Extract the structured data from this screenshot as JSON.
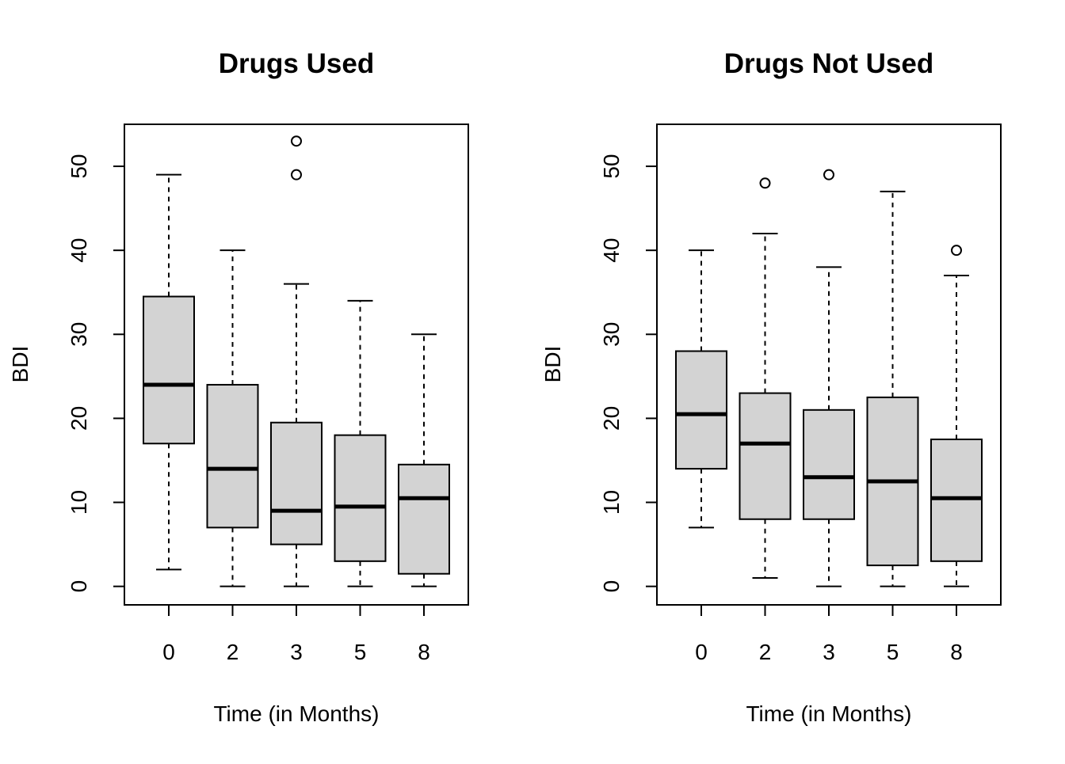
{
  "chart_data": [
    {
      "type": "boxplot",
      "title": "Drugs Used",
      "xlabel": "Time (in Months)",
      "ylabel": "BDI",
      "categories": [
        "0",
        "2",
        "3",
        "5",
        "8"
      ],
      "y_ticks": [
        0,
        10,
        20,
        30,
        40,
        50
      ],
      "ylim": [
        -2.2,
        55
      ],
      "grid": false,
      "boxes": [
        {
          "category": "0",
          "whisker_low": 2,
          "q1": 17,
          "median": 24,
          "q3": 34.5,
          "whisker_high": 49,
          "outliers": []
        },
        {
          "category": "2",
          "whisker_low": 0,
          "q1": 7,
          "median": 14,
          "q3": 24,
          "whisker_high": 40,
          "outliers": []
        },
        {
          "category": "3",
          "whisker_low": 0,
          "q1": 5,
          "median": 9,
          "q3": 19.5,
          "whisker_high": 36,
          "outliers": [
            49,
            53
          ]
        },
        {
          "category": "5",
          "whisker_low": 0,
          "q1": 3,
          "median": 9.5,
          "q3": 18,
          "whisker_high": 34,
          "outliers": []
        },
        {
          "category": "8",
          "whisker_low": 0,
          "q1": 1.5,
          "median": 10.5,
          "q3": 14.5,
          "whisker_high": 30,
          "outliers": []
        }
      ]
    },
    {
      "type": "boxplot",
      "title": "Drugs Not Used",
      "xlabel": "Time (in Months)",
      "ylabel": "BDI",
      "categories": [
        "0",
        "2",
        "3",
        "5",
        "8"
      ],
      "y_ticks": [
        0,
        10,
        20,
        30,
        40,
        50
      ],
      "ylim": [
        -2.2,
        55
      ],
      "grid": false,
      "boxes": [
        {
          "category": "0",
          "whisker_low": 7,
          "q1": 14,
          "median": 20.5,
          "q3": 28,
          "whisker_high": 40,
          "outliers": []
        },
        {
          "category": "2",
          "whisker_low": 1,
          "q1": 8,
          "median": 17,
          "q3": 23,
          "whisker_high": 42,
          "outliers": [
            48
          ]
        },
        {
          "category": "3",
          "whisker_low": 0,
          "q1": 8,
          "median": 13,
          "q3": 21,
          "whisker_high": 38,
          "outliers": [
            49
          ]
        },
        {
          "category": "5",
          "whisker_low": 0,
          "q1": 2.5,
          "median": 12.5,
          "q3": 22.5,
          "whisker_high": 47,
          "outliers": []
        },
        {
          "category": "8",
          "whisker_low": 0,
          "q1": 3,
          "median": 10.5,
          "q3": 17.5,
          "whisker_high": 37,
          "outliers": [
            40
          ]
        }
      ]
    }
  ],
  "style": {
    "box_fill": "#d3d3d3",
    "line_color": "#000000"
  }
}
